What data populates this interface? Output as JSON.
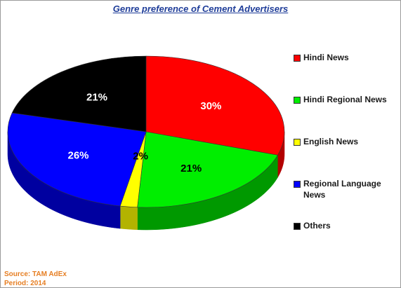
{
  "chart_data": {
    "type": "pie",
    "title": "Genre preference of Cement Advertisers",
    "slices": [
      {
        "label": "Hindi News",
        "value": 30,
        "display": "30%",
        "color": "#ff0000",
        "side_color": "#b30000"
      },
      {
        "label": "Hindi Regional News",
        "value": 21,
        "display": "21%",
        "color": "#00ee00",
        "side_color": "#009900"
      },
      {
        "label": "English News",
        "value": 2,
        "display": "2%",
        "color": "#ffff00",
        "side_color": "#b3b300"
      },
      {
        "label": "Regional Language News",
        "value": 26,
        "display": "26%",
        "color": "#0000ff",
        "side_color": "#0000a0"
      },
      {
        "label": "Others",
        "value": 21,
        "display": "21%",
        "color": "#000000",
        "side_color": "#000000"
      }
    ],
    "legend_placement": "right",
    "three_d": true
  },
  "source": {
    "line1": "Source: TAM AdEx",
    "line2": "Period: 2014"
  }
}
